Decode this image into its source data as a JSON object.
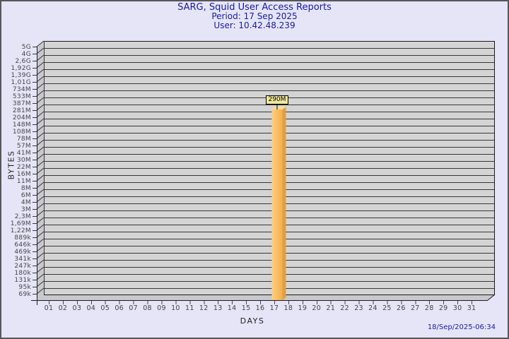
{
  "chart_data": {
    "type": "bar",
    "scale": "log",
    "title": "SARG, Squid User Access Reports",
    "period": "Period: 17 Sep 2025",
    "user": "User: 10.42.48.239",
    "xlabel": "DAYS",
    "ylabel": "BYTES",
    "x_tick_labels": [
      "01",
      "02",
      "03",
      "04",
      "05",
      "06",
      "07",
      "08",
      "09",
      "10",
      "11",
      "12",
      "13",
      "14",
      "15",
      "16",
      "17",
      "18",
      "19",
      "20",
      "21",
      "22",
      "23",
      "24",
      "25",
      "26",
      "27",
      "28",
      "29",
      "30",
      "31"
    ],
    "y_tick_labels": [
      "5G",
      "4G",
      "2,6G",
      "1,92G",
      "1,39G",
      "1,01G",
      "734M",
      "533M",
      "387M",
      "281M",
      "204M",
      "148M",
      "108M",
      "78M",
      "57M",
      "41M",
      "30M",
      "22M",
      "16M",
      "11M",
      "8M",
      "6M",
      "4M",
      "3M",
      "2,3M",
      "1,69M",
      "1,22M",
      "889k",
      "646k",
      "469k",
      "341k",
      "247k",
      "180k",
      "131k",
      "95k",
      "69k"
    ],
    "bars": [
      {
        "day": "17",
        "value_label": "290M",
        "value_bytes": 290000000
      }
    ],
    "footer_timestamp": "18/Sep/2025-06:34",
    "legend": "none",
    "grid": "horizontal-only",
    "colors": {
      "background": "#E5E5F7",
      "border": "#56565B",
      "title_text": "#1A1AA6",
      "plot_background": "#D4D4D4",
      "wall": "#C8C8CE",
      "gridline": "#383838",
      "frame": "#1c1c1c",
      "axis_text": "#454545",
      "bar_front_light": "#FFD07F",
      "bar_front_dark": "#F2AF4E",
      "bar_side": "#DD9F49",
      "bar_top": "#FFDC96",
      "value_box_bg": "#EEE79B"
    }
  }
}
